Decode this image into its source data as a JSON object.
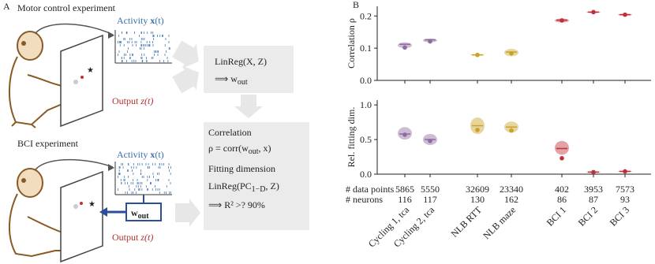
{
  "panel_a": {
    "letter": "A",
    "motor_title": "Motor control experiment",
    "bci_title": "BCI experiment",
    "activity_label": "Activity ",
    "activity_symbol": "x",
    "activity_arg": "(t)",
    "output_label": "Output ",
    "output_symbol": "z(t)",
    "wout_symbol": "w",
    "wout_sub": "out",
    "box1": {
      "line1": "LinReg(X, Z)",
      "line2": "⟹ w",
      "line2_sub": "out"
    },
    "box2": {
      "line1": "Correlation",
      "line2": "ρ = corr(w",
      "line2_sub": "out",
      "line2_end": ", x)",
      "line3": "Fitting dimension",
      "line4": "LinReg(PC",
      "line4_sub": "1−D",
      "line4_end": ", Z)",
      "line5": "⟹ R² >? 90%"
    }
  },
  "panel_b_letter": "B",
  "chart_data": [
    {
      "type": "violin",
      "ylabel": "Correlation ρ",
      "categories": [
        "Cycling 1, tca",
        "Cycling 2, tca",
        "NLB RTT",
        "NLB maze",
        "BCI 1",
        "BCI 2",
        "BCI 3"
      ],
      "colors": [
        "#8e6aa0",
        "#8e6aa0",
        "#c9a227",
        "#c9a227",
        "#c0303a",
        "#c0303a",
        "#c0303a"
      ],
      "values": [
        0.102,
        0.121,
        0.079,
        0.084,
        0.186,
        0.212,
        0.204
      ],
      "medians": [
        0.112,
        0.126,
        0.079,
        0.088,
        0.187,
        0.212,
        0.204
      ],
      "ranges": [
        [
          0.1,
          0.118
        ],
        [
          0.118,
          0.13
        ],
        [
          0.077,
          0.082
        ],
        [
          0.075,
          0.098
        ],
        [
          0.18,
          0.192
        ],
        [
          0.209,
          0.214
        ],
        [
          0.201,
          0.207
        ]
      ],
      "ylim": [
        0,
        0.23
      ],
      "yticks": [
        {
          "value": 0,
          "label": "0.0"
        },
        0.1,
        0.2
      ]
    },
    {
      "type": "violin",
      "ylabel": "Rel. fitting dim.",
      "categories": [
        "Cycling 1, tca",
        "Cycling 2, tca",
        "NLB RTT",
        "NLB maze",
        "BCI 1",
        "BCI 2",
        "BCI 3"
      ],
      "colors": [
        "#8e6aa0",
        "#8e6aa0",
        "#c9a227",
        "#c9a227",
        "#c0303a",
        "#c0303a",
        "#c0303a"
      ],
      "values": [
        0.57,
        0.48,
        0.64,
        0.63,
        0.23,
        0.03,
        0.04
      ],
      "medians": [
        0.58,
        0.5,
        0.7,
        0.68,
        0.37,
        0.03,
        0.04
      ],
      "ranges": [
        [
          0.5,
          0.68
        ],
        [
          0.42,
          0.58
        ],
        [
          0.58,
          0.82
        ],
        [
          0.6,
          0.76
        ],
        [
          0.28,
          0.48
        ],
        [
          0.02,
          0.04
        ],
        [
          0.03,
          0.05
        ]
      ],
      "ylim": [
        0,
        1.07
      ],
      "yticks": [
        {
          "value": 0,
          "label": "0.0"
        },
        0.5,
        {
          "value": 1,
          "label": "1.0"
        }
      ]
    }
  ],
  "table": {
    "row_labels": [
      "# data points",
      "# neurons"
    ],
    "rows": [
      [
        "5865",
        "5550",
        "32609",
        "23340",
        "402",
        "3953",
        "7573"
      ],
      [
        "116",
        "117",
        "130",
        "162",
        "86",
        "87",
        "93"
      ]
    ]
  }
}
